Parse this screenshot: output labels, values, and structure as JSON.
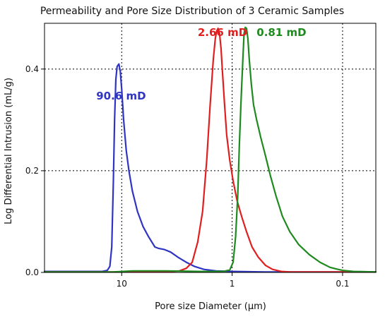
{
  "chart_data": {
    "type": "line",
    "title": "Permeability and Pore Size Distribution of 3 Ceramic Samples",
    "xlabel": "Pore size Diameter (µm)",
    "ylabel": "Log Differential Intrusion (mL/g)",
    "x_scale": "log",
    "x_reversed": true,
    "xlim": [
      50,
      0.05
    ],
    "ylim": [
      0,
      0.49
    ],
    "x_ticks": [
      {
        "value": 10,
        "label": "10"
      },
      {
        "value": 1,
        "label": "1"
      },
      {
        "value": 0.1,
        "label": "0.1"
      }
    ],
    "y_ticks": [
      {
        "value": 0.0,
        "label": "0.0"
      },
      {
        "value": 0.2,
        "label": "0.2"
      },
      {
        "value": 0.4,
        "label": "0.4"
      }
    ],
    "grid": true,
    "grid_style": "dotted",
    "series": [
      {
        "name": "90.6 mD",
        "color": "#2f35c2",
        "label_position": [
          17.0,
          0.34
        ],
        "points": [
          [
            50,
            0.002
          ],
          [
            20,
            0.002
          ],
          [
            15,
            0.002
          ],
          [
            13.5,
            0.004
          ],
          [
            12.8,
            0.012
          ],
          [
            12.3,
            0.05
          ],
          [
            11.9,
            0.18
          ],
          [
            11.6,
            0.3
          ],
          [
            11.3,
            0.38
          ],
          [
            11.0,
            0.405
          ],
          [
            10.6,
            0.41
          ],
          [
            10.3,
            0.395
          ],
          [
            10.0,
            0.36
          ],
          [
            9.6,
            0.3
          ],
          [
            9.1,
            0.24
          ],
          [
            8.6,
            0.2
          ],
          [
            8.0,
            0.16
          ],
          [
            7.2,
            0.12
          ],
          [
            6.4,
            0.09
          ],
          [
            5.7,
            0.07
          ],
          [
            5.0,
            0.05
          ],
          [
            4.6,
            0.047
          ],
          [
            4.1,
            0.045
          ],
          [
            3.6,
            0.04
          ],
          [
            3.1,
            0.03
          ],
          [
            2.6,
            0.02
          ],
          [
            2.2,
            0.012
          ],
          [
            1.8,
            0.006
          ],
          [
            1.4,
            0.003
          ],
          [
            1.0,
            0.002
          ],
          [
            0.5,
            0.001
          ],
          [
            0.2,
            0.001
          ],
          [
            0.05,
            0.001
          ]
        ]
      },
      {
        "name": "2.66 mD",
        "color": "#e02020",
        "label_position": [
          2.05,
          0.465
        ],
        "points": [
          [
            50,
            0.001
          ],
          [
            4.0,
            0.001
          ],
          [
            3.0,
            0.003
          ],
          [
            2.6,
            0.008
          ],
          [
            2.3,
            0.02
          ],
          [
            2.05,
            0.06
          ],
          [
            1.85,
            0.12
          ],
          [
            1.7,
            0.22
          ],
          [
            1.58,
            0.33
          ],
          [
            1.48,
            0.42
          ],
          [
            1.42,
            0.46
          ],
          [
            1.38,
            0.475
          ],
          [
            1.34,
            0.48
          ],
          [
            1.3,
            0.47
          ],
          [
            1.26,
            0.44
          ],
          [
            1.22,
            0.39
          ],
          [
            1.17,
            0.33
          ],
          [
            1.12,
            0.27
          ],
          [
            1.05,
            0.22
          ],
          [
            0.98,
            0.18
          ],
          [
            0.9,
            0.14
          ],
          [
            0.82,
            0.11
          ],
          [
            0.74,
            0.08
          ],
          [
            0.66,
            0.05
          ],
          [
            0.58,
            0.03
          ],
          [
            0.5,
            0.014
          ],
          [
            0.43,
            0.006
          ],
          [
            0.36,
            0.002
          ],
          [
            0.3,
            0.001
          ],
          [
            0.05,
            0.001
          ]
        ]
      },
      {
        "name": "0.81 mD",
        "color": "#1f8a1f",
        "label_position": [
          0.6,
          0.465
        ],
        "points": [
          [
            50,
            0.001
          ],
          [
            12.0,
            0.001
          ],
          [
            8.0,
            0.003
          ],
          [
            4.0,
            0.003
          ],
          [
            2.0,
            0.002
          ],
          [
            1.2,
            0.002
          ],
          [
            1.05,
            0.005
          ],
          [
            0.98,
            0.02
          ],
          [
            0.93,
            0.07
          ],
          [
            0.89,
            0.15
          ],
          [
            0.86,
            0.25
          ],
          [
            0.83,
            0.34
          ],
          [
            0.8,
            0.42
          ],
          [
            0.78,
            0.47
          ],
          [
            0.76,
            0.482
          ],
          [
            0.74,
            0.48
          ],
          [
            0.72,
            0.46
          ],
          [
            0.7,
            0.42
          ],
          [
            0.67,
            0.37
          ],
          [
            0.64,
            0.33
          ],
          [
            0.6,
            0.3
          ],
          [
            0.55,
            0.265
          ],
          [
            0.5,
            0.23
          ],
          [
            0.45,
            0.19
          ],
          [
            0.4,
            0.15
          ],
          [
            0.35,
            0.11
          ],
          [
            0.3,
            0.08
          ],
          [
            0.25,
            0.055
          ],
          [
            0.2,
            0.035
          ],
          [
            0.16,
            0.02
          ],
          [
            0.13,
            0.01
          ],
          [
            0.11,
            0.006
          ],
          [
            0.1,
            0.004
          ],
          [
            0.08,
            0.002
          ],
          [
            0.05,
            0.001
          ]
        ]
      }
    ]
  }
}
